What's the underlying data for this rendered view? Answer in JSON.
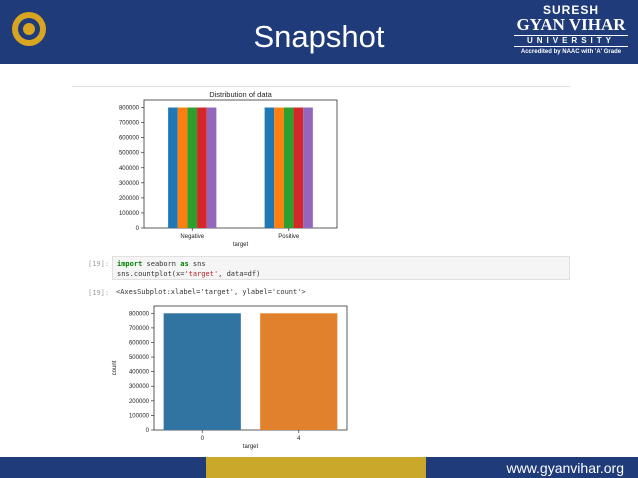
{
  "slide": {
    "title": "Snapshot",
    "brand": {
      "line1": "SURESH",
      "line2": "GYAN VIHAR",
      "line3": "UNIVERSITY",
      "line4": "Accredited by NAAC with 'A' Grade"
    },
    "footer_site": "www.gyanvihar.org"
  },
  "notebook": {
    "cell1_prompt": "[19]:",
    "cell1_code": {
      "line1_kw": "import",
      "line1_mid": " seaborn ",
      "line1_kw2": "as",
      "line1_end": " sns",
      "line2_pre": "sns.countplot(x=",
      "line2_str": "'target'",
      "line2_end": ", data=df)"
    },
    "cell1_output_prompt": "[19]:",
    "cell1_output_text": "<AxesSubplot:xlabel='target', ylabel='count'>"
  },
  "colors": {
    "header": "#1f3b7a",
    "footer_gold": "#c9a82a",
    "blue": "#1f77b4",
    "orange": "#ff7f0e",
    "green": "#2ca02c",
    "red": "#d62728",
    "purple": "#9467bd",
    "sns_blue": "#3274a1",
    "sns_orange": "#e1812c"
  },
  "chart_data": [
    {
      "type": "bar",
      "title": "Distribution of data",
      "xlabel": "target",
      "ylabel": "",
      "categories": [
        "Negative",
        "Positive"
      ],
      "series": [
        {
          "values": [
            800000,
            800000
          ]
        },
        {
          "values": [
            800000,
            800000
          ]
        },
        {
          "values": [
            800000,
            800000
          ]
        },
        {
          "values": [
            800000,
            800000
          ]
        },
        {
          "values": [
            800000,
            800000
          ]
        }
      ],
      "ylim": [
        0,
        850000
      ],
      "yticks": [
        "0",
        "100000",
        "200000",
        "300000",
        "400000",
        "500000",
        "600000",
        "700000",
        "800000"
      ]
    },
    {
      "type": "bar",
      "title": "",
      "xlabel": "target",
      "ylabel": "count",
      "categories": [
        "0",
        "4"
      ],
      "values": [
        800000,
        800000
      ],
      "ylim": [
        0,
        850000
      ],
      "yticks": [
        "0",
        "100000",
        "200000",
        "300000",
        "400000",
        "500000",
        "600000",
        "700000",
        "800000"
      ]
    }
  ]
}
